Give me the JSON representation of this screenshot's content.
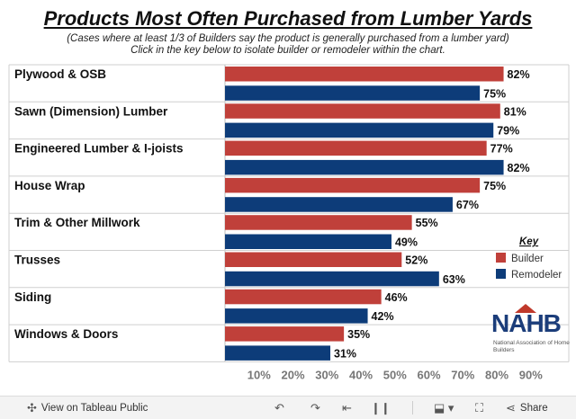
{
  "title": "Products Most Often Purchased from Lumber Yards",
  "subtitle_line1": "(Cases where at least 1/3 of Builders say the product is generally purchased from a lumber yard)",
  "subtitle_line2": "Click in the key below to isolate builder or remodeler within the chart.",
  "chart_data": {
    "type": "bar",
    "orientation": "horizontal",
    "categories": [
      "Plywood & OSB",
      "Sawn (Dimension) Lumber",
      "Engineered Lumber & I-joists",
      "House Wrap",
      "Trim & Other Millwork",
      "Trusses",
      "Siding",
      "Windows & Doors"
    ],
    "series": [
      {
        "name": "Builder",
        "color": "#c0403a",
        "values": [
          82,
          81,
          77,
          75,
          55,
          52,
          46,
          35
        ]
      },
      {
        "name": "Remodeler",
        "color": "#0d3c79",
        "values": [
          75,
          79,
          82,
          67,
          49,
          63,
          42,
          31
        ]
      }
    ],
    "value_suffix": "%",
    "xlim": [
      0,
      94
    ],
    "x_ticks": [
      10,
      20,
      30,
      40,
      50,
      60,
      70,
      80,
      90
    ],
    "x_tick_labels": [
      "10%",
      "20%",
      "30%",
      "40%",
      "50%",
      "60%",
      "70%",
      "80%",
      "90%"
    ],
    "legend": {
      "title": "Key",
      "placement": "right"
    },
    "grid": false
  },
  "logo": {
    "main": "NAHB",
    "sub": "National Association of Home Builders"
  },
  "footer": {
    "view_label": "View on Tableau Public",
    "share_label": "Share",
    "icons": [
      "tableau-icon",
      "undo-icon",
      "redo-icon",
      "revert-icon",
      "pause-icon",
      "download-icon",
      "fullscreen-icon",
      "share-icon"
    ]
  }
}
